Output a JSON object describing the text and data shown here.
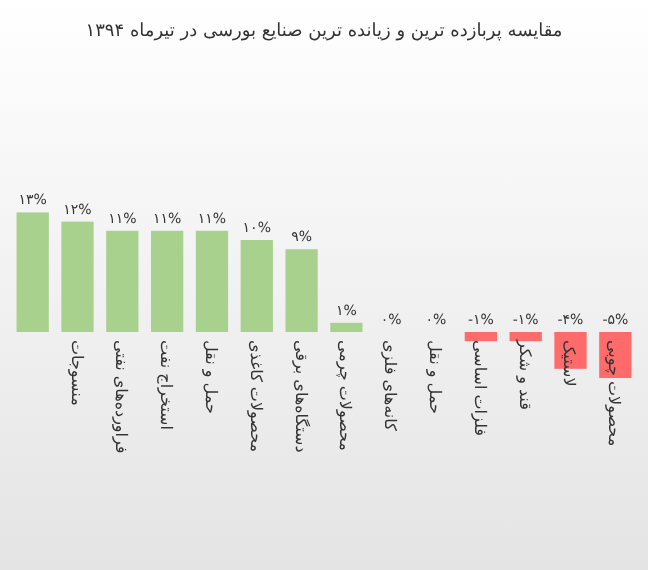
{
  "chart_data": {
    "type": "bar",
    "title": "مقایسه پربازده ترین و زیانده ترین صنایع بورسی در تیرماه ۱۳۹۴",
    "categories": [
      null,
      "منسوجات",
      "فراورده‌های نفتی",
      "استخراج نفت",
      "حمل و نقل",
      "محصولات کاغذی",
      "دستگاه‌های برقی",
      "محصولات چرمی",
      "کانه‌های فلزی",
      "حمل و نقل",
      "فلزات اساسی",
      "قند و شکر",
      "لاستیک",
      "محصولات چوبی"
    ],
    "values": [
      13,
      12,
      11,
      11,
      11,
      10,
      9,
      1,
      0,
      0,
      -1,
      -1,
      -4,
      -5
    ],
    "colors": [
      "#a9d18e",
      "#a9d18e",
      "#a9d18e",
      "#a9d18e",
      "#a9d18e",
      "#a9d18e",
      "#a9d18e",
      "#a9d18e",
      "#a9d18e",
      "#a9d18e",
      "#ff6b6b",
      "#ff6b6b",
      "#ff6b6b",
      "#ff6b6b"
    ],
    "value_labels": [
      "۱۳%",
      "۱۲%",
      "۱۱%",
      "۱۱%",
      "۱۱%",
      "۱۰%",
      "۹%",
      "۱%",
      "۰%",
      "۰%",
      "-۱%",
      "-۱%",
      "-۴%",
      "-۵%"
    ]
  }
}
